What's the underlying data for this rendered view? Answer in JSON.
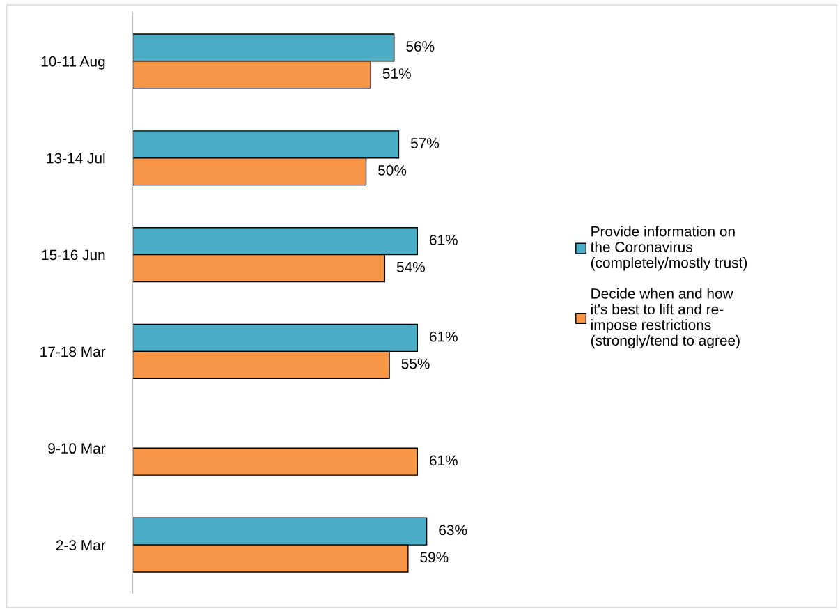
{
  "chart_data": {
    "type": "bar",
    "orientation": "horizontal",
    "tick_labels": "y",
    "categories": [
      "10-11 Aug",
      "13-14 Jul",
      "15-16 Jun",
      "17-18 Mar",
      "9-10 Mar",
      "2-3 Mar"
    ],
    "series": [
      {
        "name": "Provide information on\nthe Coronavirus\n(completely/mostly trust)",
        "color": "#4bacc6",
        "values": [
          56,
          57,
          61,
          61,
          null,
          63
        ],
        "value_labels": [
          "56%",
          "57%",
          "61%",
          "61%",
          null,
          "63%"
        ]
      },
      {
        "name": "Decide when and how\nit's best to lift and re-\nimpose restrictions\n(strongly/tend to agree)",
        "color": "#f79646",
        "values": [
          51,
          50,
          54,
          55,
          61,
          59
        ],
        "value_labels": [
          "51%",
          "50%",
          "54%",
          "55%",
          "61%",
          "59%"
        ]
      }
    ],
    "legend": "right",
    "grid": false
  }
}
